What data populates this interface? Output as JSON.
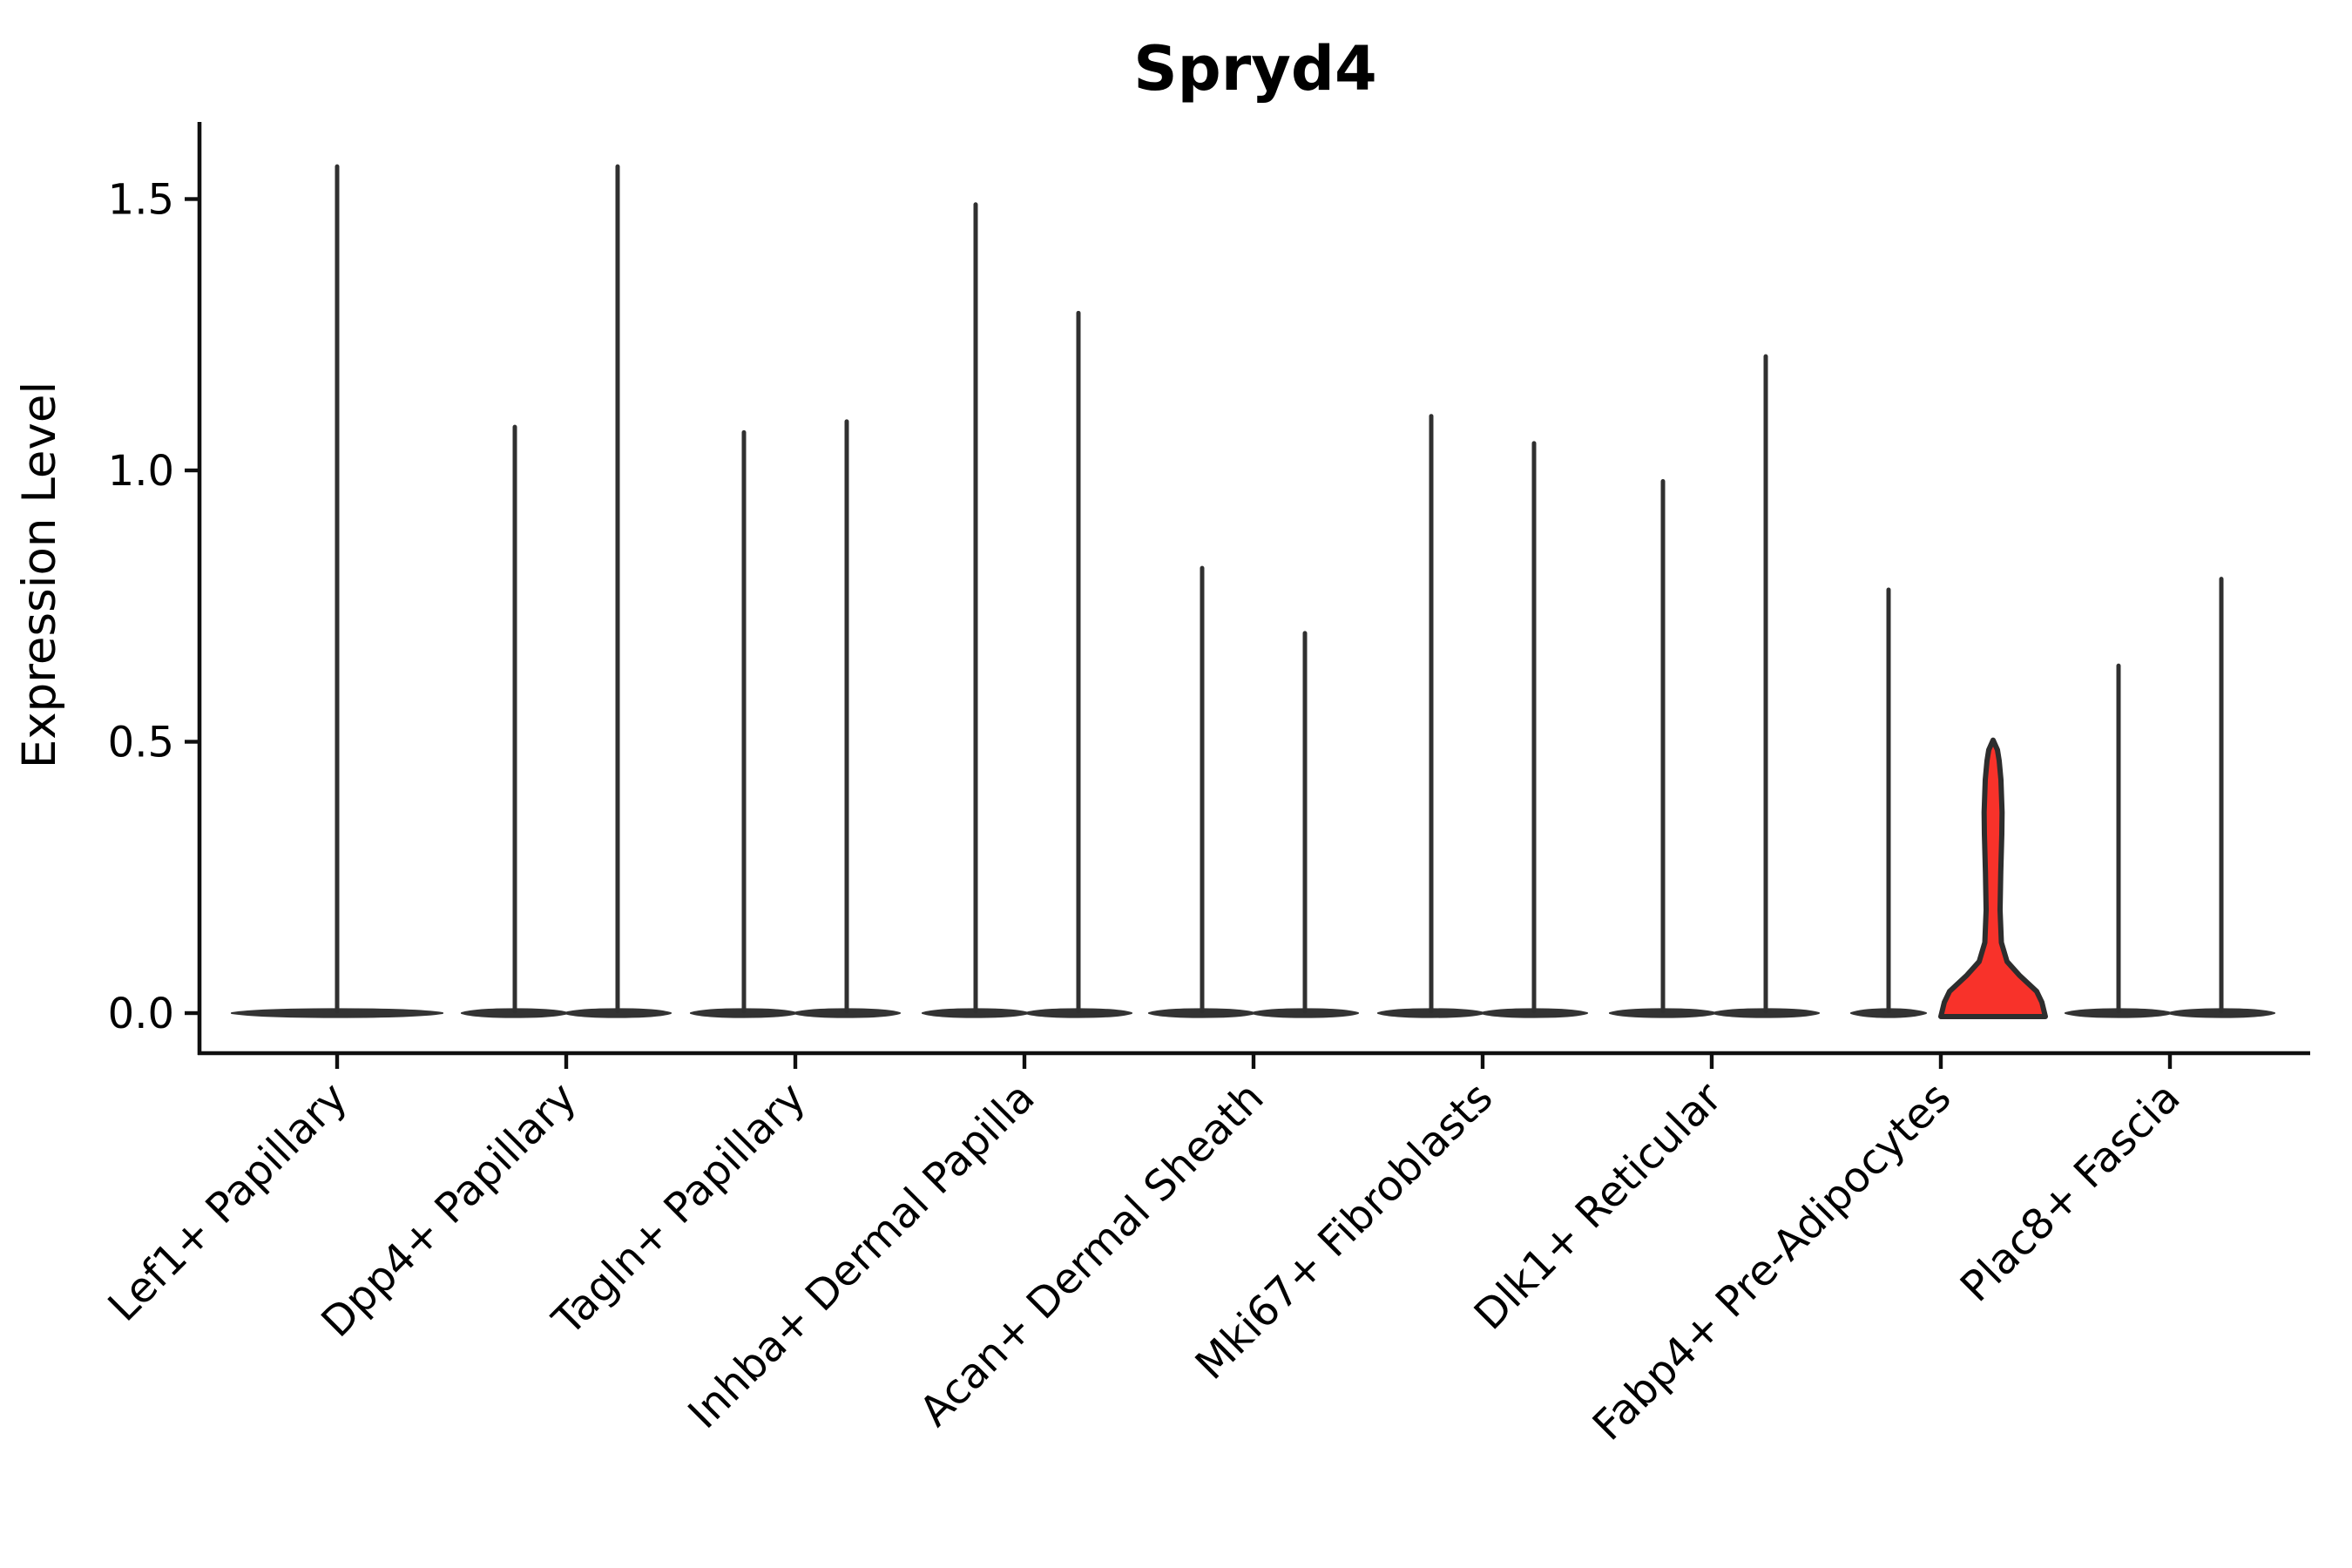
{
  "title": "Spryd4",
  "y_axis": {
    "label": "Expression Level",
    "tick_labels": [
      "0.0",
      "0.5",
      "1.0",
      "1.5"
    ],
    "tick_values": [
      0.0,
      0.5,
      1.0,
      1.5
    ]
  },
  "colors": {
    "background": "#ffffff",
    "axis": "#0f0f0f",
    "text": "#000000",
    "violin_outline": "#303030",
    "violin_base_fill": "#333333",
    "highlight_fill": "#f8322a",
    "highlight_outline": "#2d2d2d"
  },
  "highlighted_category": "Fabp4+ Pre-Adipocytes",
  "chart_data": {
    "type": "violin",
    "title": "Spryd4",
    "xlabel": "",
    "ylabel": "Expression Level",
    "ylim": [
      -0.074,
      1.645
    ],
    "grid": false,
    "legend": "none",
    "categories": [
      "Lef1+ Papillary",
      "Dpp4+ Papillary",
      "Tagln+ Papillary",
      "Inhba+ Dermal Papilla",
      "Acan+ Dermal Sheath",
      "Mki67+ Fibroblasts",
      "Dlk1+ Reticular",
      "Fabp4+ Pre-Adipocytes",
      "Plac8+ Fascia"
    ],
    "violins": [
      {
        "category": "Lef1+ Papillary",
        "group": "single",
        "max_expression": 1.56,
        "offset": 0,
        "base_half_width": 121,
        "highlight": false
      },
      {
        "category": "Dpp4+ Papillary",
        "group": "left",
        "max_expression": 1.08,
        "offset": -59,
        "base_half_width": 61,
        "highlight": false
      },
      {
        "category": "Dpp4+ Papillary",
        "group": "right",
        "max_expression": 1.56,
        "offset": 59,
        "base_half_width": 61,
        "highlight": false
      },
      {
        "category": "Tagln+ Papillary",
        "group": "left",
        "max_expression": 1.07,
        "offset": -59,
        "base_half_width": 61,
        "highlight": false
      },
      {
        "category": "Tagln+ Papillary",
        "group": "right",
        "max_expression": 1.09,
        "offset": 59,
        "base_half_width": 61,
        "highlight": false
      },
      {
        "category": "Inhba+ Dermal Papilla",
        "group": "left",
        "max_expression": 1.49,
        "offset": -56,
        "base_half_width": 61,
        "highlight": false
      },
      {
        "category": "Inhba+ Dermal Papilla",
        "group": "right",
        "max_expression": 1.29,
        "offset": 62,
        "base_half_width": 61,
        "highlight": false
      },
      {
        "category": "Acan+ Dermal Sheath",
        "group": "left",
        "max_expression": 0.82,
        "offset": -59,
        "base_half_width": 61,
        "highlight": false
      },
      {
        "category": "Acan+ Dermal Sheath",
        "group": "right",
        "max_expression": 0.7,
        "offset": 59,
        "base_half_width": 61,
        "highlight": false
      },
      {
        "category": "Mki67+ Fibroblasts",
        "group": "left",
        "max_expression": 1.1,
        "offset": -59,
        "base_half_width": 61,
        "highlight": false
      },
      {
        "category": "Mki67+ Fibroblasts",
        "group": "right",
        "max_expression": 1.05,
        "offset": 59,
        "base_half_width": 61,
        "highlight": false
      },
      {
        "category": "Dlk1+ Reticular",
        "group": "left",
        "max_expression": 0.98,
        "offset": -56,
        "base_half_width": 61,
        "highlight": false
      },
      {
        "category": "Dlk1+ Reticular",
        "group": "right",
        "max_expression": 1.21,
        "offset": 62,
        "base_half_width": 61,
        "highlight": false
      },
      {
        "category": "Fabp4+ Pre-Adipocytes",
        "group": "left",
        "max_expression": 0.78,
        "offset": -60,
        "base_half_width": 43,
        "highlight": false
      },
      {
        "category": "Fabp4+ Pre-Adipocytes",
        "group": "right",
        "max_expression": 0.5,
        "offset": 60,
        "base_half_width": 60,
        "highlight": true
      },
      {
        "category": "Plac8+ Fascia",
        "group": "left",
        "max_expression": 0.64,
        "offset": -59,
        "base_half_width": 61,
        "highlight": false
      },
      {
        "category": "Plac8+ Fascia",
        "group": "right",
        "max_expression": 0.8,
        "offset": 59,
        "base_half_width": 61,
        "highlight": false
      }
    ],
    "highlight_violin_profile": [
      [
        0.0,
        60.0
      ],
      [
        0.02,
        56.0
      ],
      [
        0.04,
        50.0
      ],
      [
        0.07,
        30.0
      ],
      [
        0.095,
        16.0
      ],
      [
        0.13,
        9.5
      ],
      [
        0.19,
        8.0
      ],
      [
        0.26,
        8.8
      ],
      [
        0.33,
        10.0
      ],
      [
        0.37,
        10.3
      ],
      [
        0.43,
        9.0
      ],
      [
        0.465,
        7.0
      ],
      [
        0.485,
        5.0
      ],
      [
        0.503,
        0.0
      ]
    ]
  }
}
